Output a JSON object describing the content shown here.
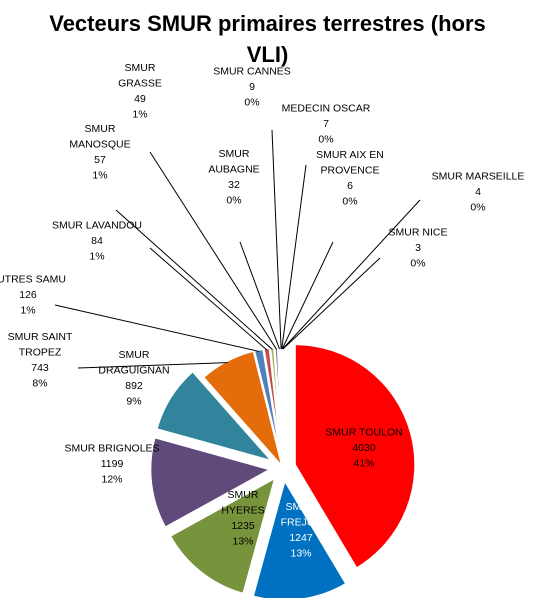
{
  "chart_data": {
    "type": "pie",
    "title_lines": [
      "Vecteurs SMUR primaires terrestres (hors",
      "VLI)"
    ],
    "legend": "none",
    "slices": [
      {
        "label": "SMUR TOULON",
        "value": 4030,
        "percent": "41%",
        "color": "#ff0000",
        "exploded": true
      },
      {
        "label": "SMUR FREJUS",
        "value": 1247,
        "percent": "13%",
        "color": "#0070c0",
        "exploded": true
      },
      {
        "label": "SMUR HYERES",
        "value": 1235,
        "percent": "13%",
        "color": "#77933c",
        "exploded": true
      },
      {
        "label": "SMUR BRIGNOLES",
        "value": 1199,
        "percent": "12%",
        "color": "#604a7b",
        "exploded": true
      },
      {
        "label": "SMUR DRAGUIGNAN",
        "value": 892,
        "percent": "9%",
        "color": "#31849b",
        "exploded": true
      },
      {
        "label": "SMUR SAINT TROPEZ",
        "value": 743,
        "percent": "8%",
        "color": "#e46c0a",
        "exploded": false
      },
      {
        "label": "AUTRES SAMU",
        "value": 126,
        "percent": "1%",
        "color": "#4f81bd",
        "exploded": false
      },
      {
        "label": "SMUR LAVANDOU",
        "value": 84,
        "percent": "1%",
        "color": "#c0504d",
        "exploded": false
      },
      {
        "label": "SMUR MANOSQUE",
        "value": 57,
        "percent": "1%",
        "color": "#9bbb59",
        "exploded": false
      },
      {
        "label": "SMUR GRASSE",
        "value": 49,
        "percent": "1%",
        "color": "#8064a2",
        "exploded": false
      },
      {
        "label": "SMUR AUBAGNE",
        "value": 32,
        "percent": "0%",
        "color": "#4bacc6",
        "exploded": false
      },
      {
        "label": "SMUR CANNES",
        "value": 9,
        "percent": "0%",
        "color": "#f79646",
        "exploded": false
      },
      {
        "label": "MEDECIN OSCAR",
        "value": 7,
        "percent": "0%",
        "color": "#2c4d75",
        "exploded": false
      },
      {
        "label": "SMUR AIX EN PROVENCE",
        "value": 6,
        "percent": "0%",
        "color": "#772c2a",
        "exploded": false
      },
      {
        "label": "SMUR MARSEILLE",
        "value": 4,
        "percent": "0%",
        "color": "#5f7530",
        "exploded": false
      },
      {
        "label": "SMUR NICE",
        "value": 3,
        "percent": "0%",
        "color": "#4d3b62",
        "exploded": false
      }
    ]
  },
  "label_lines": [
    {
      "lines": [
        "SMUR TOULON",
        "4030",
        "41%"
      ]
    },
    {
      "lines": [
        "SMUR",
        "FREJUS",
        "1247",
        "13%"
      ]
    },
    {
      "lines": [
        "SMUR",
        "HYERES",
        "1235",
        "13%"
      ]
    },
    {
      "lines": [
        "SMUR BRIGNOLES",
        "1199",
        "12%"
      ]
    },
    {
      "lines": [
        "SMUR",
        "DRAGUIGNAN",
        "892",
        "9%"
      ]
    },
    {
      "lines": [
        "SMUR SAINT",
        "TROPEZ",
        "743",
        "8%"
      ]
    },
    {
      "lines": [
        "AUTRES SAMU",
        "126",
        "1%"
      ]
    },
    {
      "lines": [
        "SMUR LAVANDOU",
        "84",
        "1%"
      ]
    },
    {
      "lines": [
        "SMUR",
        "MANOSQUE",
        "57",
        "1%"
      ]
    },
    {
      "lines": [
        "SMUR",
        "GRASSE",
        "49",
        "1%"
      ]
    },
    {
      "lines": [
        "SMUR",
        "AUBAGNE",
        "32",
        "0%"
      ]
    },
    {
      "lines": [
        "SMUR CANNES",
        "9",
        "0%"
      ]
    },
    {
      "lines": [
        "MEDECIN  OSCAR",
        "7",
        "0%"
      ]
    },
    {
      "lines": [
        "SMUR AIX EN",
        "PROVENCE",
        "6",
        "0%"
      ]
    },
    {
      "lines": [
        "SMUR MARSEILLE",
        "4",
        "0%"
      ]
    },
    {
      "lines": [
        "SMUR NICE",
        "3",
        "0%"
      ]
    }
  ]
}
